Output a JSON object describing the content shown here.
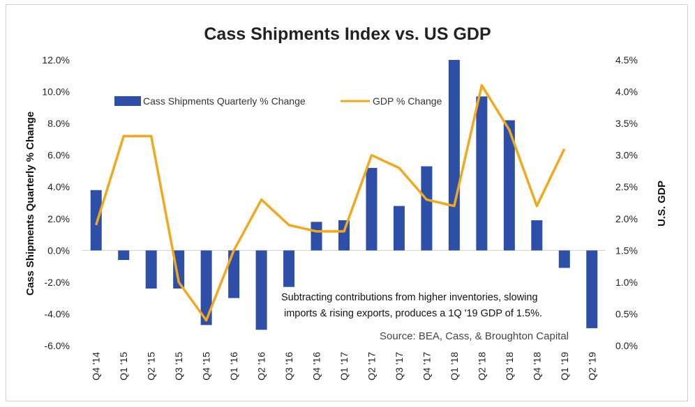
{
  "chart_data": {
    "type": "bar",
    "title": "Cass Shipments Index vs. US GDP",
    "categories": [
      "Q4 '14",
      "Q1 '15",
      "Q2 '15",
      "Q3 '15",
      "Q4 '15",
      "Q1 '16",
      "Q2 '16",
      "Q3 '16",
      "Q4 '16",
      "Q1 '17",
      "Q2 '17",
      "Q3 '17",
      "Q4 '17",
      "Q1 '18",
      "Q2 '18",
      "Q3 '18",
      "Q4 '18",
      "Q1 '19",
      "Q2 '19"
    ],
    "series": [
      {
        "name": "Cass Shipments Quarterly % Change",
        "type": "bar",
        "axis": "left",
        "color": "#2E4FA8",
        "values": [
          3.8,
          -0.6,
          -2.4,
          -2.4,
          -4.7,
          -3.0,
          -5.0,
          -2.3,
          1.8,
          1.9,
          5.2,
          2.8,
          5.3,
          12.0,
          9.7,
          8.2,
          1.9,
          -1.1,
          -4.9
        ]
      },
      {
        "name": "GDP % Change",
        "type": "line",
        "axis": "right",
        "color": "#F2A81D",
        "values": [
          1.9,
          3.3,
          3.3,
          1.0,
          0.4,
          1.5,
          2.3,
          1.9,
          1.8,
          1.8,
          3.0,
          2.8,
          2.3,
          2.2,
          4.1,
          3.4,
          2.2,
          3.1,
          null
        ]
      }
    ],
    "ylabel": "Cass Shipments Quarterly % Change",
    "ylabel_right": "U.S. GDP",
    "ylim": [
      -6,
      12
    ],
    "ylim_right": [
      0,
      4.5
    ],
    "yticks": [
      "12.0%",
      "10.0%",
      "8.0%",
      "6.0%",
      "4.0%",
      "2.0%",
      "0.0%",
      "-2.0%",
      "-4.0%",
      "-6.0%"
    ],
    "yticks_right": [
      "4.5%",
      "4.0%",
      "3.5%",
      "3.0%",
      "2.5%",
      "2.0%",
      "1.5%",
      "1.0%",
      "0.5%",
      "0.0%"
    ],
    "grid": false,
    "legend_position": "top",
    "annotation_lines": [
      "Subtracting contributions from higher inventories, slowing",
      "imports & rising exports, produces a 1Q '19 GDP of 1.5%."
    ],
    "source": "Source: BEA, Cass, & Broughton Capital"
  }
}
